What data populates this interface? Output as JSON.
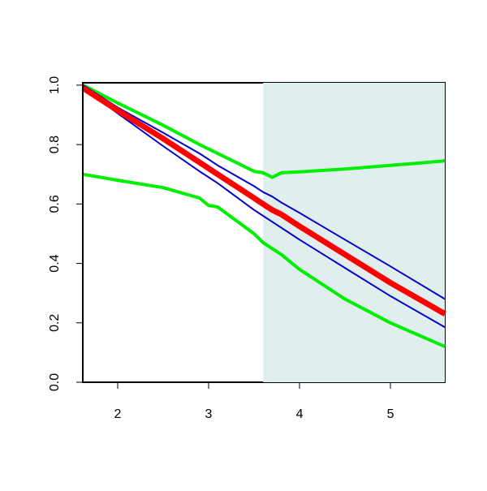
{
  "chart_data": {
    "type": "line",
    "x": [
      1.62,
      2,
      2.5,
      2.9,
      3,
      3.1,
      3.5,
      3.6,
      3.7,
      3.8,
      4,
      4.5,
      5,
      5.6
    ],
    "series": [
      {
        "color": "#00ee00",
        "width": 4,
        "values": [
          0.7,
          0.68,
          0.655,
          0.62,
          0.595,
          0.59,
          0.5,
          0.47,
          0.45,
          0.43,
          0.38,
          0.28,
          0.2,
          0.12
        ]
      },
      {
        "color": "#00ee00",
        "width": 4,
        "values": [
          1.0,
          0.94,
          0.865,
          0.8,
          0.785,
          0.77,
          0.71,
          0.705,
          0.69,
          0.705,
          0.708,
          0.718,
          0.73,
          0.745
        ]
      },
      {
        "color": "#0000cd",
        "width": 2,
        "values": [
          1.0,
          0.925,
          0.84,
          0.77,
          0.75,
          0.73,
          0.66,
          0.64,
          0.625,
          0.605,
          0.57,
          0.48,
          0.39,
          0.28
        ]
      },
      {
        "color": "#0000cd",
        "width": 2,
        "values": [
          0.99,
          0.905,
          0.795,
          0.71,
          0.69,
          0.67,
          0.58,
          0.56,
          0.54,
          0.52,
          0.48,
          0.385,
          0.29,
          0.185
        ]
      },
      {
        "color": "#ff0000",
        "width": 7,
        "values": [
          0.99,
          0.915,
          0.82,
          0.74,
          0.72,
          0.7,
          0.62,
          0.6,
          0.58,
          0.565,
          0.525,
          0.43,
          0.335,
          0.23
        ]
      }
    ],
    "shaded_from": 3.6,
    "shade_color": "#e0eeee",
    "xlim": [
      1.616,
      5.598
    ],
    "ylim": [
      0,
      1.008
    ],
    "xticks": [
      2,
      3,
      4,
      5
    ],
    "yticks": [
      {
        "value": 0,
        "label": "0.0"
      },
      0.2,
      0.4,
      0.6,
      0.8,
      {
        "value": 1,
        "label": "1.0"
      }
    ]
  }
}
